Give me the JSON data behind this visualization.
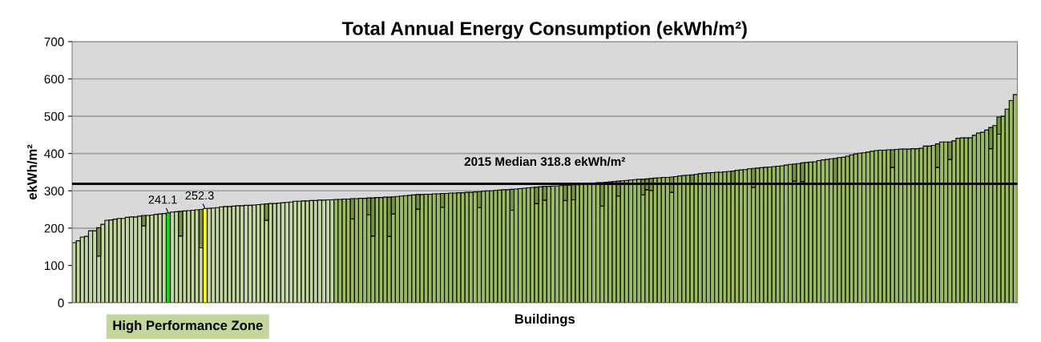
{
  "chart_data": {
    "type": "bar",
    "title": "Total Annual Energy Consumption (ekWh/m²)",
    "xlabel": "Buildings",
    "ylabel": "ekWh/m²",
    "categories": [
      null,
      null,
      null,
      null,
      null,
      null,
      null,
      null,
      null,
      null,
      null,
      null,
      null,
      null,
      null,
      null,
      null,
      null,
      null,
      null,
      null,
      null,
      null,
      null,
      null,
      null,
      null,
      null,
      null,
      null,
      null,
      null,
      null,
      null,
      null,
      null,
      null,
      null,
      null,
      null,
      null,
      null,
      null,
      null,
      null,
      null,
      null,
      null,
      null,
      null,
      null,
      null,
      null,
      null,
      null,
      null,
      null,
      null,
      null,
      null,
      null,
      null,
      null,
      null,
      null,
      null,
      null,
      null,
      null,
      null,
      null,
      null,
      null,
      null,
      null,
      null,
      null,
      null,
      null,
      null,
      null,
      null,
      null,
      null,
      null,
      null,
      null,
      null,
      null,
      null,
      null,
      null,
      null,
      null,
      null,
      null,
      null,
      null,
      null,
      null,
      null,
      null,
      null,
      null,
      null,
      null,
      null,
      null,
      null,
      null,
      null,
      null,
      null,
      null,
      null,
      null,
      null,
      null,
      null,
      null,
      null,
      null,
      null,
      null,
      null,
      null,
      null,
      null,
      null,
      null,
      null,
      null,
      null,
      null,
      null,
      null,
      null,
      null,
      null,
      null,
      null,
      null,
      null,
      null,
      null,
      null,
      null,
      null,
      null,
      null,
      null,
      null,
      null,
      null,
      null,
      null,
      null,
      null,
      null,
      null,
      null,
      null,
      null,
      null,
      null,
      null,
      null,
      null,
      null,
      null,
      null,
      null,
      null,
      null,
      null,
      null,
      null,
      null,
      null,
      null,
      null,
      null,
      null,
      null,
      null,
      null,
      null,
      null,
      null,
      null,
      null,
      null,
      null,
      null,
      null,
      null,
      null,
      null,
      null,
      null,
      null,
      null,
      null,
      null,
      null,
      null,
      null,
      null,
      null,
      null,
      null,
      null,
      null,
      null,
      null,
      null,
      null,
      null,
      null,
      null,
      null,
      null,
      null,
      null,
      null,
      null,
      null,
      null,
      null,
      null,
      null
    ],
    "stacked": true,
    "series": [
      {
        "values": [
          161,
          166,
          176,
          178,
          193,
          193,
          125,
          210,
          221,
          222,
          224,
          226,
          226,
          229,
          230,
          230,
          232,
          206,
          234,
          235,
          237,
          238,
          239,
          241.1,
          243,
          244,
          179,
          246,
          247,
          248,
          249,
          147,
          252.3,
          253,
          254,
          255,
          257,
          258,
          258,
          259,
          260,
          260,
          261,
          261,
          262,
          263,
          264,
          221,
          266,
          266,
          267,
          268,
          269,
          270,
          272,
          272,
          273,
          273,
          274,
          274,
          275,
          275,
          276,
          276,
          277,
          277,
          278,
          278,
          225,
          279,
          280,
          280,
          236,
          179,
          282,
          282,
          283,
          178,
          238,
          285,
          286,
          287,
          288,
          289,
          251,
          290,
          291,
          291,
          292,
          292,
          256,
          293,
          294,
          294,
          295,
          295,
          296,
          296,
          297,
          255,
          299,
          300,
          300,
          301,
          302,
          303,
          303,
          248,
          305,
          306,
          307,
          308,
          309,
          266,
          311,
          275,
          312,
          313,
          313,
          314,
          274,
          315,
          276,
          316,
          317,
          318,
          320,
          321,
          322,
          259,
          323,
          324,
          325,
          286,
          327,
          328,
          329,
          330,
          331,
          289,
          303,
          301,
          334,
          335,
          336,
          336,
          296,
          338,
          340,
          341,
          342,
          318,
          344,
          346,
          347,
          348,
          349,
          350,
          350,
          351,
          352,
          318,
          355,
          356,
          357,
          359,
          309,
          361,
          362,
          363,
          364,
          365,
          366,
          367,
          369,
          371,
          326,
          373,
          325,
          376,
          377,
          378,
          381,
          383,
          384,
          386,
          318,
          389,
          390,
          393,
          396,
          399,
          401,
          402,
          404,
          406,
          408,
          409,
          409,
          410,
          363,
          411,
          412,
          412,
          412,
          413,
          413,
          414,
          420,
          420,
          422,
          363,
          431,
          431,
          384,
          434,
          441,
          442,
          442,
          442,
          449,
          455,
          457,
          463,
          413,
          475,
          452,
          500,
          519,
          542,
          558
        ],
        "colors": [
          "#c3d69b",
          "#c3d69b",
          "#c3d69b",
          "#c3d69b",
          "#c3d69b",
          "#c3d69b",
          "#c3d69b",
          "#c3d69b",
          "#c3d69b",
          "#c3d69b",
          "#c3d69b",
          "#c3d69b",
          "#c3d69b",
          "#c3d69b",
          "#c3d69b",
          "#c3d69b",
          "#c3d69b",
          "#c3d69b",
          "#c3d69b",
          "#c3d69b",
          "#c3d69b",
          "#c3d69b",
          "#c3d69b",
          "#00e000",
          "#c3d69b",
          "#c3d69b",
          "#c3d69b",
          "#c3d69b",
          "#c3d69b",
          "#c3d69b",
          "#c3d69b",
          "#c3d69b",
          "#ffff00",
          "#c3d69b",
          "#c3d69b",
          "#c3d69b",
          "#c3d69b",
          "#c3d69b",
          "#c3d69b",
          "#c3d69b",
          "#c3d69b",
          "#c3d69b",
          "#c3d69b",
          "#c3d69b",
          "#c3d69b",
          "#c3d69b",
          "#c3d69b",
          "#c3d69b",
          "#c3d69b",
          "#c3d69b",
          "#c3d69b",
          "#c3d69b",
          "#c3d69b",
          "#c3d69b",
          "#c3d69b",
          "#c3d69b",
          "#c3d69b",
          "#c3d69b",
          "#c3d69b",
          "#c3d69b",
          "#c3d69b",
          "#c3d69b",
          "#c3d69b",
          "#c3d69b",
          "#9bbb59",
          "#9bbb59",
          "#9bbb59",
          "#9bbb59",
          "#9bbb59",
          "#9bbb59",
          "#9bbb59",
          "#9bbb59",
          "#9bbb59",
          "#9bbb59",
          "#9bbb59",
          "#9bbb59",
          "#9bbb59",
          "#9bbb59",
          "#9bbb59",
          "#9bbb59",
          "#9bbb59",
          "#9bbb59",
          "#9bbb59",
          "#9bbb59",
          "#9bbb59",
          "#9bbb59",
          "#9bbb59",
          "#9bbb59",
          "#9bbb59",
          "#9bbb59",
          "#9bbb59",
          "#9bbb59",
          "#9bbb59",
          "#9bbb59",
          "#9bbb59",
          "#9bbb59",
          "#9bbb59",
          "#9bbb59",
          "#9bbb59",
          "#9bbb59",
          "#9bbb59",
          "#9bbb59",
          "#9bbb59",
          "#9bbb59",
          "#9bbb59",
          "#9bbb59",
          "#9bbb59",
          "#9bbb59",
          "#9bbb59",
          "#9bbb59",
          "#9bbb59",
          "#9bbb59",
          "#9bbb59",
          "#9bbb59",
          "#9bbb59",
          "#9bbb59",
          "#9bbb59",
          "#9bbb59",
          "#9bbb59",
          "#9bbb59",
          "#9bbb59",
          "#9bbb59",
          "#9bbb59",
          "#9bbb59",
          "#9bbb59",
          "#9bbb59",
          "#9bbb59",
          "#9bbb59",
          "#9bbb59",
          "#9bbb59",
          "#9bbb59",
          "#9bbb59",
          "#9bbb59",
          "#9bbb59",
          "#9bbb59",
          "#9bbb59",
          "#9bbb59",
          "#9bbb59",
          "#9bbb59",
          "#9bbb59",
          "#9bbb59",
          "#9bbb59",
          "#9bbb59",
          "#9bbb59",
          "#9bbb59",
          "#9bbb59",
          "#9bbb59",
          "#9bbb59",
          "#9bbb59",
          "#9bbb59",
          "#9bbb59",
          "#9bbb59",
          "#9bbb59",
          "#9bbb59",
          "#9bbb59",
          "#9bbb59",
          "#9bbb59",
          "#9bbb59",
          "#9bbb59",
          "#9bbb59",
          "#9bbb59",
          "#9bbb59",
          "#9bbb59",
          "#9bbb59",
          "#9bbb59",
          "#9bbb59",
          "#9bbb59",
          "#9bbb59",
          "#9bbb59",
          "#9bbb59",
          "#9bbb59",
          "#9bbb59",
          "#9bbb59",
          "#9bbb59",
          "#9bbb59",
          "#9bbb59",
          "#9bbb59",
          "#9bbb59",
          "#9bbb59",
          "#9bbb59",
          "#9bbb59",
          "#9bbb59",
          "#9bbb59",
          "#9bbb59",
          "#9bbb59",
          "#9bbb59",
          "#9bbb59",
          "#9bbb59",
          "#9bbb59",
          "#9bbb59",
          "#9bbb59",
          "#9bbb59",
          "#9bbb59",
          "#9bbb59",
          "#9bbb59",
          "#9bbb59",
          "#9bbb59",
          "#9bbb59",
          "#9bbb59",
          "#9bbb59",
          "#9bbb59",
          "#9bbb59",
          "#9bbb59",
          "#9bbb59",
          "#9bbb59",
          "#9bbb59",
          "#9bbb59",
          "#9bbb59",
          "#9bbb59",
          "#9bbb59",
          "#9bbb59",
          "#9bbb59",
          "#9bbb59",
          "#9bbb59",
          "#9bbb59",
          "#9bbb59",
          "#9bbb59",
          "#9bbb59",
          "#9bbb59",
          "#9bbb59",
          "#9bbb59",
          "#9bbb59",
          "#9bbb59",
          "#9bbb59",
          "#9bbb59",
          "#9bbb59",
          "#9bbb59",
          "#9bbb59",
          "#9bbb59",
          "#9bbb59",
          "#9bbb59"
        ],
        "value_labels": [
          null,
          null,
          null,
          null,
          null,
          null,
          null,
          null,
          null,
          null,
          null,
          null,
          null,
          null,
          null,
          null,
          null,
          null,
          null,
          null,
          null,
          null,
          null,
          "241.1",
          null,
          null,
          null,
          null,
          null,
          null,
          null,
          null,
          "252.3",
          null,
          null,
          null,
          null,
          null,
          null,
          null,
          null,
          null,
          null,
          null,
          null,
          null,
          null,
          null,
          null,
          null,
          null,
          null,
          null,
          null,
          null,
          null,
          null,
          null,
          null,
          null,
          null,
          null,
          null,
          null,
          null,
          null,
          null,
          null,
          null,
          null,
          null,
          null,
          null,
          null,
          null,
          null,
          null,
          null,
          null,
          null,
          null,
          null,
          null,
          null,
          null,
          null,
          null,
          null,
          null,
          null,
          null,
          null,
          null,
          null,
          null,
          null,
          null,
          null,
          null,
          null,
          null,
          null,
          null,
          null,
          null,
          null,
          null,
          null,
          null,
          null,
          null,
          null,
          null,
          null,
          null,
          null,
          null,
          null,
          null,
          null,
          null,
          null,
          null,
          null,
          null,
          null,
          null,
          null,
          null,
          null,
          null,
          null,
          null,
          null,
          null,
          null,
          null,
          null,
          null,
          null,
          null,
          null,
          null,
          null,
          null,
          null,
          null,
          null,
          null,
          null,
          null,
          null,
          null,
          null,
          null,
          null,
          null,
          null,
          null,
          null,
          null,
          null,
          null,
          null,
          null,
          null,
          null,
          null,
          null,
          null,
          null,
          null,
          null,
          null,
          null,
          null,
          null,
          null,
          null,
          null,
          null,
          null,
          null,
          null,
          null,
          null,
          null,
          null,
          null,
          null,
          null,
          null,
          null,
          null,
          null,
          null,
          null,
          null,
          null,
          null,
          null,
          null,
          null,
          null,
          null,
          null,
          null,
          null,
          null,
          null,
          null,
          null,
          null,
          null,
          null,
          null,
          null,
          null,
          null,
          null,
          null,
          null,
          null,
          null,
          null,
          null,
          null,
          null,
          null,
          null,
          null
        ]
      },
      {
        "color": "#77933c",
        "values": [
          null,
          null,
          null,
          null,
          null,
          null,
          76,
          null,
          null,
          null,
          null,
          null,
          null,
          null,
          null,
          null,
          null,
          28,
          null,
          null,
          null,
          null,
          null,
          null,
          null,
          null,
          66,
          null,
          null,
          null,
          null,
          103,
          null,
          null,
          null,
          null,
          null,
          null,
          null,
          null,
          null,
          null,
          null,
          null,
          null,
          null,
          null,
          44,
          null,
          null,
          null,
          null,
          null,
          null,
          null,
          null,
          null,
          null,
          null,
          null,
          null,
          null,
          null,
          null,
          null,
          null,
          null,
          null,
          54,
          null,
          null,
          null,
          45,
          102,
          null,
          null,
          null,
          105,
          46,
          null,
          null,
          null,
          null,
          null,
          39,
          null,
          null,
          null,
          null,
          null,
          37,
          null,
          null,
          null,
          null,
          null,
          null,
          null,
          null,
          43,
          null,
          null,
          null,
          null,
          null,
          null,
          null,
          56,
          null,
          null,
          null,
          null,
          null,
          44,
          null,
          37,
          null,
          null,
          null,
          null,
          41,
          null,
          40,
          null,
          null,
          null,
          null,
          null,
          null,
          63,
          null,
          null,
          null,
          40,
          null,
          null,
          null,
          null,
          null,
          42,
          29,
          32,
          null,
          null,
          null,
          null,
          41,
          null,
          null,
          null,
          null,
          25,
          null,
          null,
          null,
          null,
          null,
          null,
          null,
          null,
          null,
          35,
          null,
          null,
          null,
          null,
          51,
          null,
          null,
          null,
          null,
          null,
          null,
          null,
          null,
          null,
          46,
          null,
          50,
          null,
          null,
          null,
          null,
          null,
          null,
          null,
          69,
          null,
          null,
          null,
          null,
          null,
          null,
          null,
          null,
          null,
          null,
          null,
          null,
          null,
          47,
          null,
          null,
          null,
          null,
          null,
          null,
          null,
          null,
          null,
          null,
          63,
          null,
          null,
          47,
          null,
          null,
          null,
          null,
          null,
          null,
          null,
          null,
          null,
          57,
          null,
          46,
          null,
          null,
          null,
          null
        ]
      }
    ],
    "ylim": [
      0,
      700
    ],
    "yticks": [
      0,
      100,
      200,
      300,
      400,
      500,
      600,
      700
    ],
    "grid": "y",
    "tick_labels": "y",
    "ref_lines": [
      {
        "axis": "y",
        "value": 318.8,
        "label": "2015 Median 318.8 ekWh/m²",
        "color": "#000000"
      }
    ],
    "annotations": [
      "High Performance Zone"
    ]
  }
}
